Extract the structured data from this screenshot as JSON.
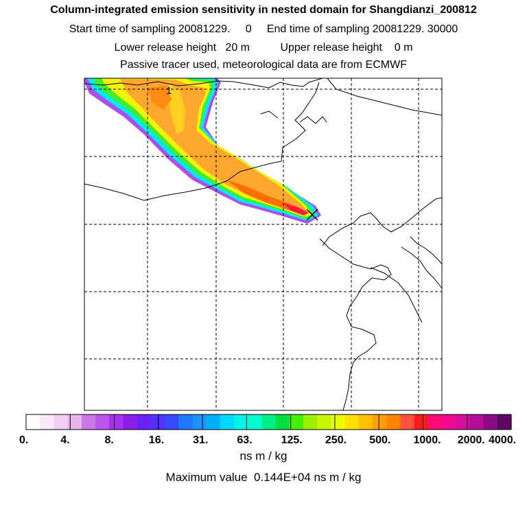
{
  "header": {
    "title": "Column-integrated emission sensitivity in nested domain for Shangdianzi_200812",
    "line2": "Start time of sampling 20081229.     0     End time of sampling 20081229. 30000",
    "line3": "Lower release height   20 m          Upper release height    0 m",
    "line4": "Passive tracer used, meteorological data are from ECMWF"
  },
  "map": {
    "contour_label": "1",
    "release_marker": "x-marker-icon"
  },
  "colorbar": {
    "colors": [
      "#ffffff",
      "#fbe8fb",
      "#f4cff4",
      "#eab4ee",
      "#cc77e6",
      "#bb55ee",
      "#a82fee",
      "#8a1ee6",
      "#6a22f2",
      "#5230ff",
      "#3a48ff",
      "#1f78ff",
      "#1d93ff",
      "#00b0ff",
      "#00d8ff",
      "#00f5ea",
      "#00ffd0",
      "#00ee88",
      "#00e040",
      "#44f000",
      "#99f000",
      "#c8f500",
      "#e8ff00",
      "#ffe000",
      "#ffc000",
      "#ffa000",
      "#ff8400",
      "#ff5040",
      "#ff1a1a",
      "#ff0a78",
      "#f00a90",
      "#d4109c",
      "#b00c98",
      "#8a0a88",
      "#5c0860"
    ],
    "labels": [
      "0.",
      "4.",
      "8.",
      "16.",
      "31.",
      "63.",
      "125.",
      "250.",
      "500.",
      "1000.",
      "2000.",
      "4000."
    ],
    "units": "ns m / kg"
  },
  "footer": {
    "max_value": "Maximum value  0.144E+04 ns m / kg"
  }
}
